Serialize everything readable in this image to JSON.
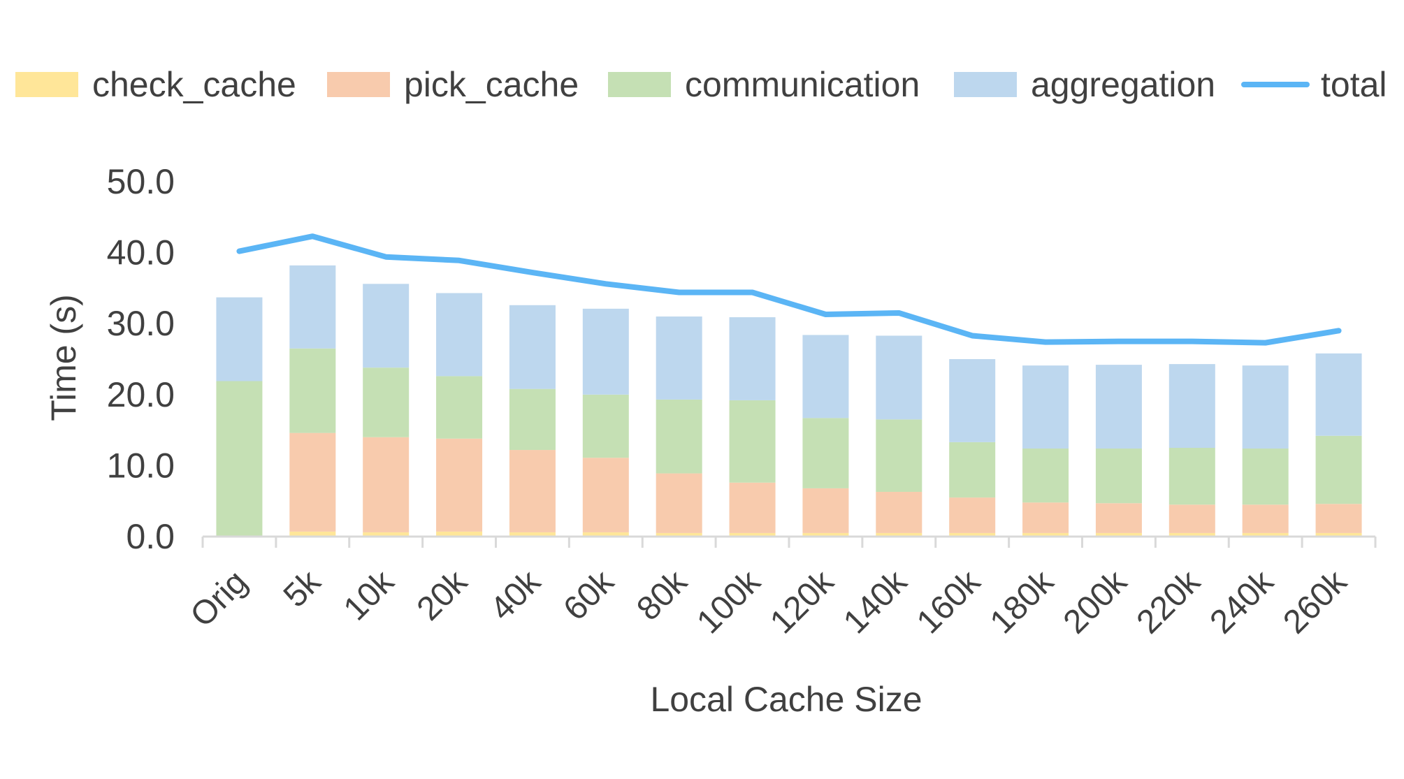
{
  "chart_data": {
    "type": "bar",
    "stacked": true,
    "title": "",
    "xlabel": "Local Cache Size",
    "ylabel": "Time (s)",
    "ylim": [
      0,
      50
    ],
    "yticks": [
      "0.0",
      "10.0",
      "20.0",
      "30.0",
      "40.0",
      "50.0"
    ],
    "grid": false,
    "legend_position": "top",
    "categories": [
      "Orig",
      "5k",
      "10k",
      "20k",
      "40k",
      "60k",
      "80k",
      "100k",
      "120k",
      "140k",
      "160k",
      "180k",
      "200k",
      "220k",
      "240k",
      "260k"
    ],
    "series": [
      {
        "name": "check_cache",
        "type": "bar",
        "color": "#FFE699",
        "values": [
          0,
          0.7,
          0.6,
          0.7,
          0.6,
          0.6,
          0.5,
          0.5,
          0.5,
          0.5,
          0.5,
          0.5,
          0.5,
          0.5,
          0.5,
          0.5
        ]
      },
      {
        "name": "pick_cache",
        "type": "bar",
        "color": "#F8CBAD",
        "values": [
          0,
          13.9,
          13.4,
          13.1,
          11.6,
          10.5,
          8.4,
          7.1,
          6.3,
          5.8,
          5.0,
          4.3,
          4.2,
          4.0,
          4.0,
          4.1
        ]
      },
      {
        "name": "communication",
        "type": "bar",
        "color": "#C5E0B4",
        "values": [
          21.9,
          11.9,
          9.8,
          8.8,
          8.6,
          8.9,
          10.4,
          11.6,
          9.9,
          10.2,
          7.8,
          7.6,
          7.7,
          8.0,
          7.9,
          9.6
        ]
      },
      {
        "name": "aggregation",
        "type": "bar",
        "color": "#BDD7EE",
        "values": [
          11.8,
          11.7,
          11.8,
          11.7,
          11.8,
          12.1,
          11.7,
          11.7,
          11.7,
          11.8,
          11.7,
          11.7,
          11.8,
          11.8,
          11.7,
          11.6
        ]
      },
      {
        "name": "total",
        "type": "line",
        "color": "#5BB5F5",
        "values": [
          40.2,
          42.3,
          39.4,
          38.9,
          37.2,
          35.6,
          34.4,
          34.4,
          31.3,
          31.5,
          28.3,
          27.4,
          27.5,
          27.5,
          27.3,
          29.0
        ]
      }
    ]
  },
  "colors": {
    "axis": "#D9D9D9",
    "text": "#404040"
  }
}
